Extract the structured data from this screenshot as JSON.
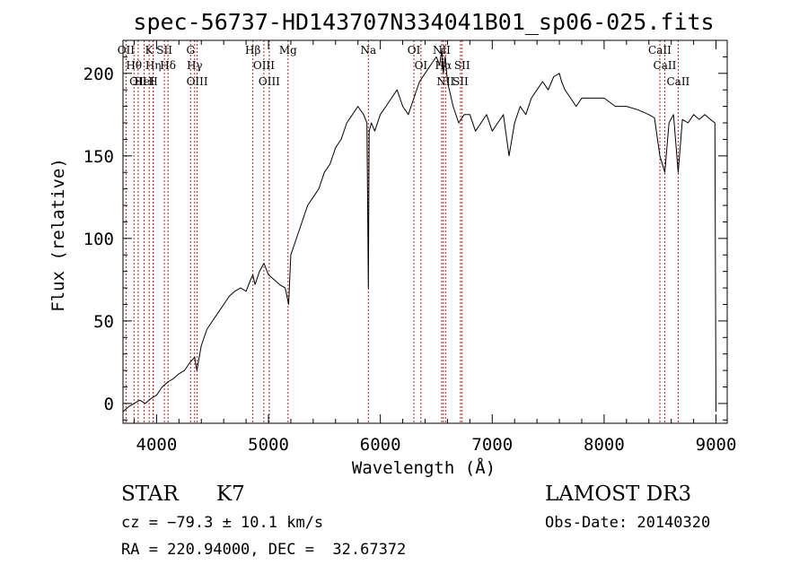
{
  "chart_data": {
    "type": "line",
    "title": "spec-56737-HD143707N334041B01_sp06-025.fits",
    "xlabel": "Wavelength (Å)",
    "ylabel": "Flux (relative)",
    "xlim": [
      3700,
      9100
    ],
    "ylim": [
      -12,
      220
    ],
    "xticks": [
      4000,
      5000,
      6000,
      7000,
      8000,
      9000
    ],
    "yticks": [
      0,
      50,
      100,
      150,
      200
    ],
    "grid": false,
    "series": [
      {
        "x": [
          3700,
          3750,
          3800,
          3850,
          3900,
          3950,
          4000,
          4050,
          4100,
          4150,
          4200,
          4250,
          4300,
          4340,
          4360,
          4400,
          4450,
          4500,
          4550,
          4600,
          4650,
          4700,
          4750,
          4800,
          4840,
          4860,
          4880,
          4920,
          4960,
          5000,
          5050,
          5100,
          5150,
          5180,
          5200,
          5250,
          5300,
          5350,
          5400,
          5450,
          5500,
          5550,
          5600,
          5650,
          5700,
          5750,
          5800,
          5850,
          5880,
          5893,
          5900,
          5920,
          5950,
          6000,
          6050,
          6100,
          6150,
          6200,
          6250,
          6300,
          6350,
          6400,
          6450,
          6500,
          6530,
          6550,
          6563,
          6580,
          6600,
          6650,
          6700,
          6750,
          6800,
          6850,
          6900,
          6950,
          7000,
          7050,
          7100,
          7150,
          7200,
          7250,
          7300,
          7350,
          7400,
          7450,
          7500,
          7550,
          7600,
          7620,
          7650,
          7700,
          7750,
          7800,
          7850,
          7900,
          8000,
          8100,
          8200,
          8300,
          8400,
          8450,
          8498,
          8542,
          8580,
          8620,
          8662,
          8700,
          8750,
          8800,
          8850,
          8900,
          8950,
          8990,
          9000
        ],
        "y": [
          -5,
          -2,
          0,
          2,
          0,
          3,
          5,
          10,
          13,
          15,
          18,
          20,
          25,
          28,
          20,
          35,
          45,
          50,
          55,
          60,
          65,
          68,
          70,
          68,
          75,
          78,
          72,
          80,
          85,
          78,
          75,
          72,
          70,
          60,
          90,
          100,
          110,
          120,
          125,
          130,
          140,
          145,
          155,
          160,
          170,
          175,
          180,
          175,
          170,
          70,
          165,
          170,
          165,
          175,
          180,
          185,
          190,
          180,
          175,
          185,
          195,
          200,
          205,
          210,
          205,
          215,
          200,
          210,
          195,
          180,
          170,
          175,
          175,
          165,
          170,
          175,
          165,
          170,
          175,
          150,
          170,
          180,
          175,
          185,
          190,
          195,
          190,
          198,
          200,
          195,
          190,
          185,
          180,
          185,
          185,
          185,
          185,
          180,
          180,
          178,
          175,
          173,
          150,
          140,
          170,
          175,
          140,
          172,
          170,
          175,
          172,
          175,
          172,
          170,
          -5
        ]
      }
    ],
    "line_markers": [
      {
        "wavelength": 3727,
        "label": "OII"
      },
      {
        "wavelength": 3798,
        "label": "Hθ"
      },
      {
        "wavelength": 3835,
        "label": "OII"
      },
      {
        "wavelength": 3889,
        "label": "HeI"
      },
      {
        "wavelength": 3934,
        "label": "K"
      },
      {
        "wavelength": 3970,
        "label": "Hη"
      },
      {
        "wavelength": 3970,
        "label": "H"
      },
      {
        "wavelength": 4070,
        "label": "SII"
      },
      {
        "wavelength": 4102,
        "label": "Hδ"
      },
      {
        "wavelength": 4304,
        "label": "G"
      },
      {
        "wavelength": 4340,
        "label": "Hγ"
      },
      {
        "wavelength": 4363,
        "label": "OIII"
      },
      {
        "wavelength": 4861,
        "label": "Hβ"
      },
      {
        "wavelength": 4959,
        "label": "OIII"
      },
      {
        "wavelength": 5007,
        "label": "OIII"
      },
      {
        "wavelength": 5175,
        "label": "Mg"
      },
      {
        "wavelength": 5893,
        "label": "Na"
      },
      {
        "wavelength": 6300,
        "label": "OI"
      },
      {
        "wavelength": 6363,
        "label": "OI"
      },
      {
        "wavelength": 6548,
        "label": "NII"
      },
      {
        "wavelength": 6563,
        "label": "Hα"
      },
      {
        "wavelength": 6583,
        "label": "NII"
      },
      {
        "wavelength": 6716,
        "label": "SII"
      },
      {
        "wavelength": 6731,
        "label": "SII"
      },
      {
        "wavelength": 8498,
        "label": "CaII"
      },
      {
        "wavelength": 8542,
        "label": "CaII"
      },
      {
        "wavelength": 8662,
        "label": "CaII"
      }
    ]
  },
  "info": {
    "class_label": "STAR",
    "subclass_label": "K7",
    "cz": "cz = −79.3 ± 10.1 km/s",
    "coords": "RA = 220.94000, DEC =  32.67372",
    "survey": "LAMOST DR3",
    "obs_date": "Obs-Date: 20140320"
  },
  "colors": {
    "line_marker": "#b22222",
    "spectrum": "#000000"
  }
}
